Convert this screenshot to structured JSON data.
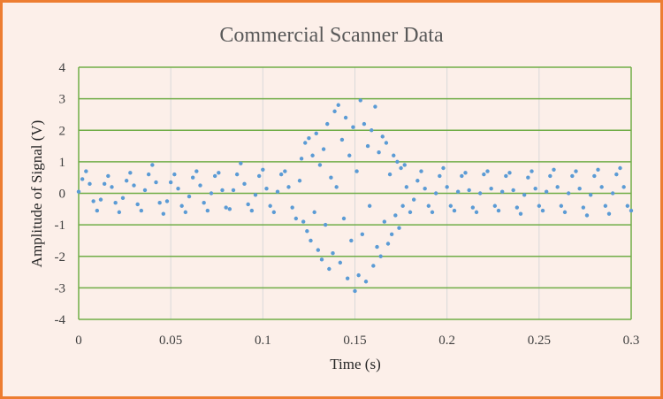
{
  "chart_data": {
    "type": "scatter",
    "title": "Commercial Scanner Data",
    "xlabel": "Time (s)",
    "ylabel": "Amplitude of Signal (V)",
    "xlim": [
      0,
      0.3
    ],
    "ylim": [
      -4,
      4
    ],
    "x_ticks": [
      "0",
      "0.05",
      "0.1",
      "0.15",
      "0.2",
      "0.25",
      "0.3"
    ],
    "y_ticks": [
      "4",
      "3",
      "2",
      "1",
      "0",
      "-1",
      "-2",
      "-3",
      "-4"
    ],
    "grid": "horizontal and vertical",
    "legend": "none",
    "series": [
      {
        "marker": "circle",
        "points": [
          [
            0.0,
            0.05
          ],
          [
            0.002,
            0.45
          ],
          [
            0.004,
            0.7
          ],
          [
            0.006,
            0.3
          ],
          [
            0.008,
            -0.25
          ],
          [
            0.01,
            -0.55
          ],
          [
            0.012,
            -0.2
          ],
          [
            0.014,
            0.3
          ],
          [
            0.016,
            0.55
          ],
          [
            0.018,
            0.2
          ],
          [
            0.02,
            -0.3
          ],
          [
            0.022,
            -0.6
          ],
          [
            0.024,
            -0.15
          ],
          [
            0.026,
            0.4
          ],
          [
            0.028,
            0.65
          ],
          [
            0.03,
            0.25
          ],
          [
            0.032,
            -0.35
          ],
          [
            0.034,
            -0.55
          ],
          [
            0.036,
            0.1
          ],
          [
            0.038,
            0.6
          ],
          [
            0.04,
            0.9
          ],
          [
            0.042,
            0.35
          ],
          [
            0.044,
            -0.3
          ],
          [
            0.046,
            -0.65
          ],
          [
            0.048,
            -0.25
          ],
          [
            0.05,
            0.35
          ],
          [
            0.052,
            0.6
          ],
          [
            0.054,
            0.15
          ],
          [
            0.056,
            -0.4
          ],
          [
            0.058,
            -0.6
          ],
          [
            0.06,
            -0.1
          ],
          [
            0.062,
            0.5
          ],
          [
            0.064,
            0.7
          ],
          [
            0.066,
            0.25
          ],
          [
            0.068,
            -0.3
          ],
          [
            0.07,
            -0.55
          ],
          [
            0.072,
            0.0
          ],
          [
            0.074,
            0.55
          ],
          [
            0.076,
            0.65
          ],
          [
            0.078,
            0.1
          ],
          [
            0.08,
            -0.45
          ],
          [
            0.082,
            -0.5
          ],
          [
            0.084,
            0.1
          ],
          [
            0.086,
            0.6
          ],
          [
            0.088,
            0.95
          ],
          [
            0.09,
            0.3
          ],
          [
            0.092,
            -0.35
          ],
          [
            0.094,
            -0.55
          ],
          [
            0.096,
            -0.05
          ],
          [
            0.098,
            0.55
          ],
          [
            0.1,
            0.75
          ],
          [
            0.102,
            0.15
          ],
          [
            0.104,
            -0.4
          ],
          [
            0.106,
            -0.6
          ],
          [
            0.108,
            0.05
          ],
          [
            0.11,
            0.6
          ],
          [
            0.112,
            0.7
          ],
          [
            0.114,
            0.2
          ],
          [
            0.116,
            -0.45
          ],
          [
            0.118,
            -0.8
          ],
          [
            0.12,
            0.4
          ],
          [
            0.121,
            1.1
          ],
          [
            0.122,
            -0.9
          ],
          [
            0.123,
            1.6
          ],
          [
            0.124,
            -1.2
          ],
          [
            0.125,
            1.75
          ],
          [
            0.126,
            -1.5
          ],
          [
            0.127,
            1.2
          ],
          [
            0.128,
            -0.6
          ],
          [
            0.129,
            1.9
          ],
          [
            0.13,
            -1.8
          ],
          [
            0.131,
            0.9
          ],
          [
            0.132,
            -2.1
          ],
          [
            0.133,
            1.4
          ],
          [
            0.134,
            -1.0
          ],
          [
            0.135,
            2.2
          ],
          [
            0.136,
            -2.4
          ],
          [
            0.137,
            0.5
          ],
          [
            0.138,
            -1.9
          ],
          [
            0.139,
            2.6
          ],
          [
            0.14,
            0.2
          ],
          [
            0.141,
            2.8
          ],
          [
            0.142,
            -2.2
          ],
          [
            0.143,
            1.7
          ],
          [
            0.144,
            -0.8
          ],
          [
            0.145,
            2.4
          ],
          [
            0.146,
            -2.7
          ],
          [
            0.147,
            1.2
          ],
          [
            0.148,
            -1.5
          ],
          [
            0.149,
            2.1
          ],
          [
            0.15,
            -3.1
          ],
          [
            0.151,
            0.7
          ],
          [
            0.152,
            -2.6
          ],
          [
            0.153,
            2.95
          ],
          [
            0.154,
            -1.3
          ],
          [
            0.155,
            2.2
          ],
          [
            0.156,
            -2.8
          ],
          [
            0.157,
            1.5
          ],
          [
            0.158,
            -0.4
          ],
          [
            0.159,
            2.0
          ],
          [
            0.16,
            -2.3
          ],
          [
            0.161,
            2.75
          ],
          [
            0.162,
            -1.7
          ],
          [
            0.163,
            1.3
          ],
          [
            0.164,
            -2.0
          ],
          [
            0.165,
            1.8
          ],
          [
            0.166,
            -0.9
          ],
          [
            0.167,
            1.6
          ],
          [
            0.168,
            -1.6
          ],
          [
            0.169,
            0.6
          ],
          [
            0.17,
            -1.3
          ],
          [
            0.171,
            1.2
          ],
          [
            0.172,
            -0.7
          ],
          [
            0.173,
            1.0
          ],
          [
            0.174,
            -1.1
          ],
          [
            0.175,
            0.8
          ],
          [
            0.176,
            -0.4
          ],
          [
            0.177,
            0.9
          ],
          [
            0.178,
            0.2
          ],
          [
            0.18,
            -0.6
          ],
          [
            0.182,
            -0.2
          ],
          [
            0.184,
            0.4
          ],
          [
            0.186,
            0.7
          ],
          [
            0.188,
            0.15
          ],
          [
            0.19,
            -0.4
          ],
          [
            0.192,
            -0.6
          ],
          [
            0.194,
            0.0
          ],
          [
            0.196,
            0.55
          ],
          [
            0.198,
            0.8
          ],
          [
            0.2,
            0.2
          ],
          [
            0.202,
            -0.4
          ],
          [
            0.204,
            -0.55
          ],
          [
            0.206,
            0.05
          ],
          [
            0.208,
            0.55
          ],
          [
            0.21,
            0.65
          ],
          [
            0.212,
            0.1
          ],
          [
            0.214,
            -0.45
          ],
          [
            0.216,
            -0.6
          ],
          [
            0.218,
            0.0
          ],
          [
            0.22,
            0.6
          ],
          [
            0.222,
            0.7
          ],
          [
            0.224,
            0.15
          ],
          [
            0.226,
            -0.4
          ],
          [
            0.228,
            -0.55
          ],
          [
            0.23,
            0.05
          ],
          [
            0.232,
            0.55
          ],
          [
            0.234,
            0.65
          ],
          [
            0.236,
            0.1
          ],
          [
            0.238,
            -0.45
          ],
          [
            0.24,
            -0.65
          ],
          [
            0.242,
            -0.05
          ],
          [
            0.244,
            0.5
          ],
          [
            0.246,
            0.7
          ],
          [
            0.248,
            0.15
          ],
          [
            0.25,
            -0.4
          ],
          [
            0.252,
            -0.55
          ],
          [
            0.254,
            0.05
          ],
          [
            0.256,
            0.55
          ],
          [
            0.258,
            0.75
          ],
          [
            0.26,
            0.2
          ],
          [
            0.262,
            -0.4
          ],
          [
            0.264,
            -0.6
          ],
          [
            0.266,
            0.0
          ],
          [
            0.268,
            0.55
          ],
          [
            0.27,
            0.7
          ],
          [
            0.272,
            0.15
          ],
          [
            0.274,
            -0.45
          ],
          [
            0.276,
            -0.7
          ],
          [
            0.278,
            -0.05
          ],
          [
            0.28,
            0.55
          ],
          [
            0.282,
            0.75
          ],
          [
            0.284,
            0.2
          ],
          [
            0.286,
            -0.4
          ],
          [
            0.288,
            -0.65
          ],
          [
            0.29,
            0.0
          ],
          [
            0.292,
            0.6
          ],
          [
            0.294,
            0.8
          ],
          [
            0.296,
            0.2
          ],
          [
            0.298,
            -0.4
          ],
          [
            0.3,
            -0.55
          ]
        ]
      }
    ],
    "colors": {
      "points": "#5b9bd5",
      "gridlines": "#70ad47",
      "vertical_gridlines": "#d9d9d9",
      "border": "#ed7d31",
      "background": "#fcefe9"
    }
  }
}
